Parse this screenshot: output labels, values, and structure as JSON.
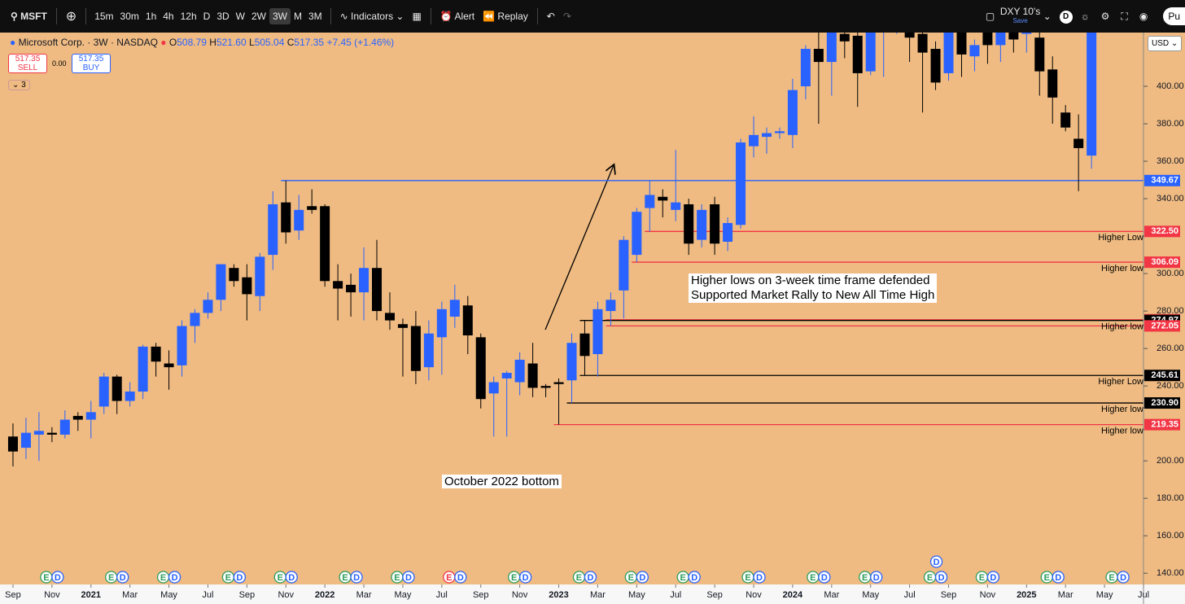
{
  "toolbar": {
    "symbol": "MSFT",
    "timeframes": [
      "15m",
      "30m",
      "1h",
      "4h",
      "12h",
      "D",
      "3D",
      "W",
      "2W",
      "3W",
      "M",
      "3M"
    ],
    "indicators": "Indicators",
    "alert": "Alert",
    "replay": "Replay",
    "layout_name": "DXY 10's",
    "save": "Save",
    "profile": "D",
    "publish": "Pu"
  },
  "legend": {
    "name": "Microsoft Corp. · 3W · NASDAQ",
    "o_label": "O",
    "open": "508.79",
    "h_label": "H",
    "high": "521.60",
    "l_label": "L",
    "low": "505.04",
    "c_label": "C",
    "close": "517.35",
    "change": "+7.45 (+1.46%)",
    "sell_price": "517.35",
    "sell": "SELL",
    "spread": "0.00",
    "buy_price": "517.35",
    "buy": "BUY",
    "indicators_count": "3"
  },
  "currency": "USD",
  "markers": {
    "earnings": "E",
    "dividend": "D"
  },
  "chart_data": {
    "type": "candlestick",
    "open": [
      213,
      207,
      214,
      215,
      214,
      224,
      222,
      229,
      245,
      232,
      237,
      261,
      252,
      251,
      272,
      279,
      286,
      303,
      298,
      288,
      310,
      338,
      323,
      336,
      336,
      296,
      294,
      290,
      303,
      279,
      273,
      272,
      250,
      266,
      277,
      283,
      266,
      236,
      244,
      242,
      252,
      240,
      242,
      243,
      268,
      257,
      280,
      291,
      310,
      335,
      341,
      334,
      337,
      318,
      337,
      317,
      326,
      368,
      373,
      375,
      374,
      400,
      420,
      413,
      428,
      427,
      408,
      430,
      440,
      430,
      428,
      420,
      407,
      430,
      416,
      430,
      422,
      430,
      428,
      426,
      409,
      386,
      372,
      363
    ],
    "high": [
      220,
      223,
      226,
      218,
      227,
      226,
      232,
      247,
      246,
      242,
      262,
      263,
      259,
      275,
      281,
      290,
      305,
      305,
      305,
      311,
      344,
      349.67,
      342,
      345,
      337,
      305,
      300,
      314,
      318,
      290,
      276,
      280,
      275,
      285,
      294,
      288,
      268,
      245,
      248,
      258,
      263,
      241,
      244,
      268,
      275,
      285,
      290,
      320,
      335,
      350,
      345,
      366,
      340,
      337,
      341,
      330,
      372,
      384,
      378,
      378,
      404,
      422,
      430,
      432,
      432,
      430,
      432,
      445,
      450,
      440,
      432,
      424,
      434,
      435,
      425,
      432,
      435,
      434,
      435,
      432,
      416,
      390,
      385,
      440
    ],
    "low": [
      197,
      201,
      200,
      210,
      212,
      216,
      212,
      225,
      225,
      229,
      233,
      245,
      238,
      245,
      263,
      276,
      280,
      293,
      275,
      280,
      302,
      316,
      318,
      332,
      293,
      275,
      277,
      275,
      275,
      270,
      245,
      241,
      243,
      246,
      271,
      257,
      228,
      213,
      213,
      235,
      234,
      234,
      219.35,
      230.9,
      245.61,
      245,
      272.05,
      276,
      306.09,
      322.5,
      330,
      328,
      310,
      314,
      310,
      312,
      324,
      362,
      364,
      372,
      367,
      393,
      380,
      395,
      415,
      389,
      406,
      405,
      428,
      413,
      386,
      398,
      403,
      405,
      408,
      412,
      413,
      418,
      418,
      395,
      380,
      376,
      344,
      356
    ],
    "close": [
      205,
      215,
      216,
      214,
      222,
      222,
      226,
      245,
      232,
      237,
      261,
      253,
      250,
      272,
      279,
      286,
      305,
      296,
      289,
      309,
      337,
      322,
      334,
      334,
      296,
      292,
      290,
      303,
      280,
      275,
      271,
      248,
      268,
      281,
      286,
      267,
      233,
      242,
      247,
      254,
      239,
      239,
      241,
      263,
      256,
      281,
      286,
      318,
      333,
      342,
      339,
      338,
      316,
      334,
      316,
      327,
      370,
      374,
      375,
      376,
      398,
      420,
      413,
      430,
      424,
      407,
      430,
      440,
      445,
      426,
      418,
      402,
      430,
      417,
      422,
      422,
      430,
      425,
      429,
      408,
      394,
      378,
      367,
      430
    ],
    "up_color": "#2962ff",
    "down_color": "#000000",
    "xlim": [
      -1,
      87
    ],
    "xticks": [
      {
        "value": 0,
        "label": "Sep"
      },
      {
        "value": 3,
        "label": "Nov"
      },
      {
        "value": 6,
        "label": "2021"
      },
      {
        "value": 9,
        "label": "Mar"
      },
      {
        "value": 12,
        "label": "May"
      },
      {
        "value": 15,
        "label": "Jul"
      },
      {
        "value": 18,
        "label": "Sep"
      },
      {
        "value": 21,
        "label": "Nov"
      },
      {
        "value": 24,
        "label": "2022"
      },
      {
        "value": 27,
        "label": "Mar"
      },
      {
        "value": 30,
        "label": "May"
      },
      {
        "value": 33,
        "label": "Jul"
      },
      {
        "value": 36,
        "label": "Sep"
      },
      {
        "value": 39,
        "label": "Nov"
      },
      {
        "value": 42,
        "label": "2023"
      },
      {
        "value": 45,
        "label": "Mar"
      },
      {
        "value": 48,
        "label": "May"
      },
      {
        "value": 51,
        "label": "Jul"
      },
      {
        "value": 54,
        "label": "Sep"
      },
      {
        "value": 57,
        "label": "Nov"
      },
      {
        "value": 60,
        "label": "2024"
      },
      {
        "value": 63,
        "label": "Mar"
      },
      {
        "value": 66,
        "label": "May"
      },
      {
        "value": 69,
        "label": "Jul"
      },
      {
        "value": 72,
        "label": "Sep"
      },
      {
        "value": 75,
        "label": "Nov"
      },
      {
        "value": 78,
        "label": "2025"
      },
      {
        "value": 81,
        "label": "Mar"
      },
      {
        "value": 84,
        "label": "May"
      },
      {
        "value": 87,
        "label": "Jul"
      }
    ],
    "ylim": [
      134,
      428.7
    ],
    "yticks": [
      {
        "value": 400,
        "label": "400.00"
      },
      {
        "value": 380,
        "label": "380.00"
      },
      {
        "value": 360,
        "label": "360.00"
      },
      {
        "value": 340,
        "label": "340.00"
      },
      {
        "value": 300,
        "label": "300.00"
      },
      {
        "value": 280,
        "label": "280.00"
      },
      {
        "value": 260,
        "label": "260.00"
      },
      {
        "value": 240,
        "label": "240.00"
      },
      {
        "value": 200,
        "label": "200.00"
      },
      {
        "value": 180,
        "label": "180.00"
      },
      {
        "value": 160,
        "label": "160.00"
      },
      {
        "value": 140,
        "label": "140.00"
      }
    ],
    "levels": [
      {
        "value": 349.67,
        "label": "349.67",
        "color": "#2962ff"
      },
      {
        "value": 322.5,
        "label": "322.50",
        "color": "#f23645",
        "note": "Higher Low"
      },
      {
        "value": 306.09,
        "label": "306.09",
        "color": "#f23645",
        "note": "Higher low"
      },
      {
        "value": 275.37,
        "label": "275.37",
        "color": "#f23645"
      },
      {
        "value": 274.97,
        "label": "274.97",
        "color": "#000000",
        "note": "Higher low"
      },
      {
        "value": 272.05,
        "label": "272.05",
        "color": "#f23645"
      },
      {
        "value": 245.61,
        "label": "245.61",
        "color": "#000000",
        "note": "Higher Low"
      },
      {
        "value": 230.9,
        "label": "230.90",
        "color": "#000000",
        "note": "Higher low"
      },
      {
        "value": 219.35,
        "label": "219.35",
        "color": "#f23645",
        "note": "Higher low"
      }
    ],
    "annotations": [
      "Higher lows on 3-week time frame defended",
      "Supported Market Rally to New All Time High",
      "October 2022 bottom"
    ]
  }
}
